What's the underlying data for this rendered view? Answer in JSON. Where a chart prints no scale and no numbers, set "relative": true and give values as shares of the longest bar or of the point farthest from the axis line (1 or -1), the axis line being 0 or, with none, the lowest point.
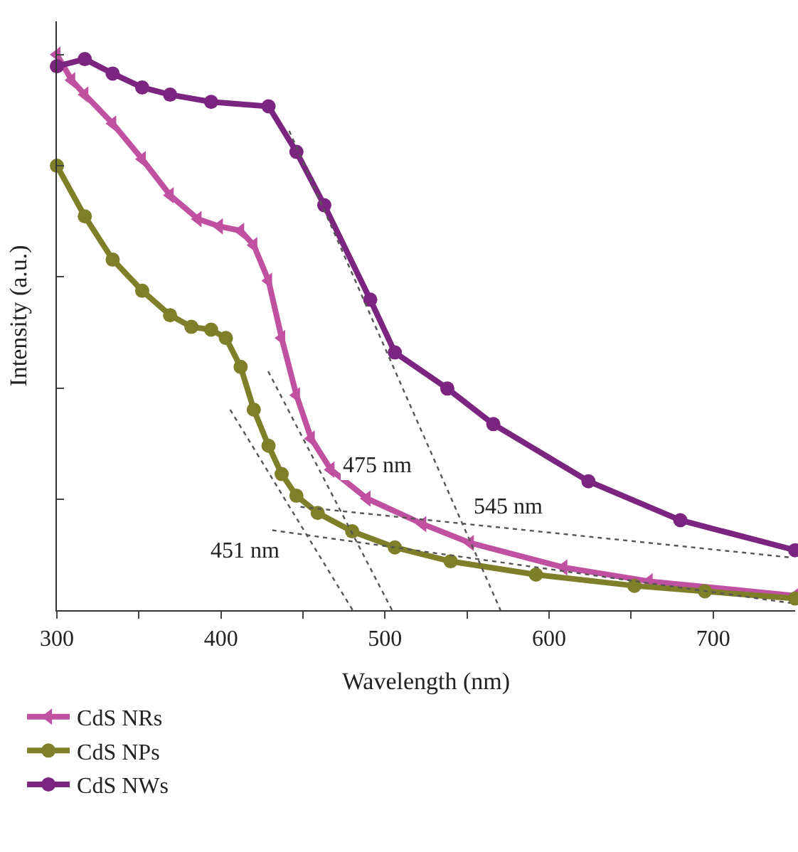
{
  "chart_data": {
    "type": "line",
    "xlabel": "Wavelength (nm)",
    "ylabel": "Intensity (a.u.)",
    "relative": true,
    "xlim": [
      300,
      750
    ],
    "xticks": [
      300,
      {
        "value": 350,
        "label": null
      },
      400,
      {
        "value": 450,
        "label": null
      },
      500,
      {
        "value": 550,
        "label": null
      },
      600,
      {
        "value": 650,
        "label": null
      },
      700
    ],
    "legend": "bottom left",
    "series": [
      {
        "name": "CdS NRs",
        "color": "#c050a0",
        "marker": "triangle",
        "x": [
          300,
          309,
          317,
          334,
          352,
          369,
          386,
          399,
          412,
          420,
          429,
          437,
          446,
          455,
          467,
          489,
          523,
          552,
          609,
          661,
          750
        ],
        "values": [
          1.0,
          0.954,
          0.928,
          0.876,
          0.812,
          0.747,
          0.704,
          0.691,
          0.683,
          0.657,
          0.593,
          0.49,
          0.387,
          0.309,
          0.253,
          0.201,
          0.155,
          0.121,
          0.077,
          0.052,
          0.026
        ]
      },
      {
        "name": "CdS NPs",
        "color": "#7f7f2a",
        "marker": "circle",
        "x": [
          300,
          317,
          334,
          352,
          369,
          382,
          394,
          403,
          412,
          420,
          429,
          437,
          446,
          459,
          480,
          506,
          540,
          592,
          652,
          695,
          750
        ],
        "values": [
          0.8,
          0.709,
          0.631,
          0.575,
          0.531,
          0.51,
          0.505,
          0.49,
          0.438,
          0.361,
          0.296,
          0.245,
          0.206,
          0.175,
          0.142,
          0.113,
          0.088,
          0.064,
          0.044,
          0.034,
          0.021
        ]
      },
      {
        "name": "CdS NWs",
        "color": "#7b2580",
        "marker": "circle",
        "x": [
          300,
          317,
          334,
          352,
          369,
          394,
          429,
          446,
          463,
          491,
          506,
          538,
          566,
          624,
          680,
          750
        ],
        "values": [
          0.979,
          0.992,
          0.966,
          0.941,
          0.928,
          0.915,
          0.907,
          0.825,
          0.729,
          0.559,
          0.464,
          0.399,
          0.335,
          0.232,
          0.162,
          0.108
        ]
      },
      {
        "color": "#555555",
        "line_style": "dotted",
        "x": [
          405.6,
          480.3
        ],
        "values": [
          0.361,
          0
        ]
      },
      {
        "color": "#555555",
        "line_style": "dotted",
        "x": [
          428.8,
          504.3
        ],
        "values": [
          0.43,
          0
        ]
      },
      {
        "color": "#555555",
        "line_style": "dotted",
        "x": [
          441.6,
          570.4
        ],
        "values": [
          0.863,
          0
        ]
      },
      {
        "color": "#555555",
        "line_style": "dotted",
        "x": [
          448.5,
          747
        ],
        "values": [
          0.186,
          0.095
        ]
      },
      {
        "color": "#555555",
        "line_style": "dotted",
        "x": [
          431.3,
          747
        ],
        "values": [
          0.144,
          0.013
        ]
      }
    ],
    "annotations": [
      "451 nm",
      "475 nm",
      "545 nm"
    ]
  }
}
